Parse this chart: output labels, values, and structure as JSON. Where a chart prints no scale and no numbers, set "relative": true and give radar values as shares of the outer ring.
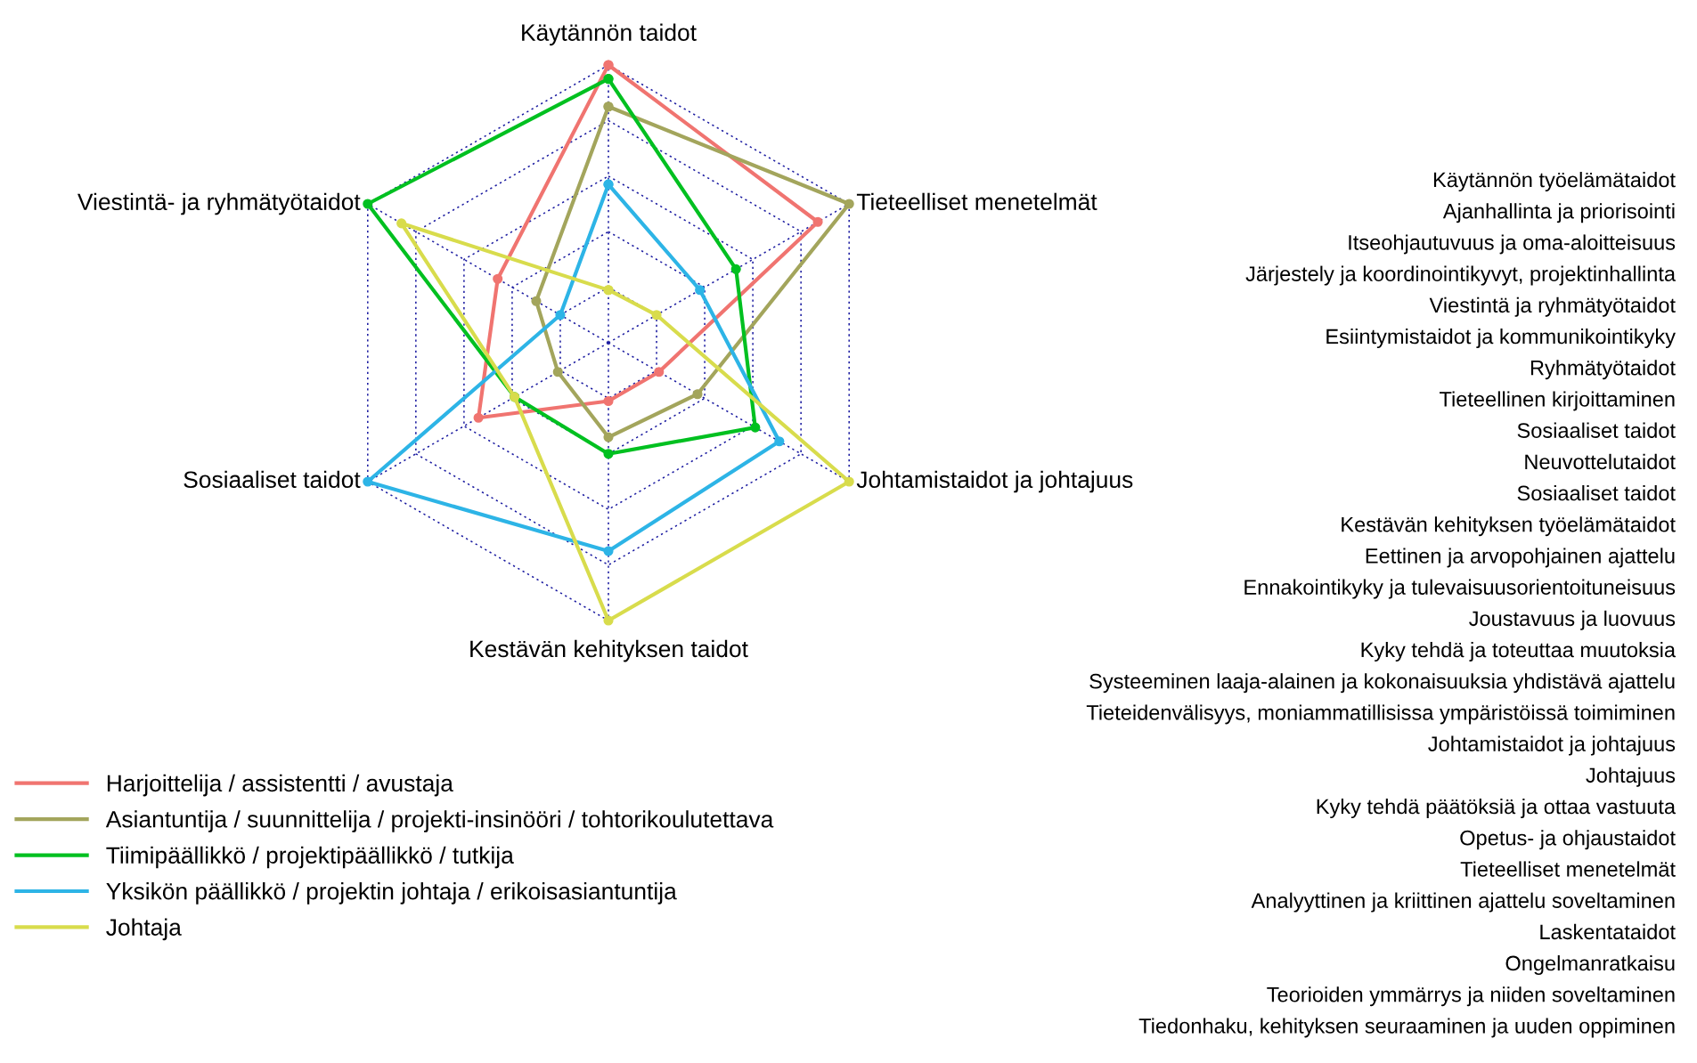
{
  "chart_data": {
    "type": "radar",
    "relative": true,
    "grid": true,
    "legend": "bottom left",
    "marker": "circle",
    "line_style": "solid",
    "categories": [
      "Käytännön taidot",
      "Tieteelliset menetelmät",
      "Johtamistaidot ja johtajuus",
      "Kestävän kehityksen taidot",
      "Sosiaaliset taidot",
      "Viestintä- ja ryhmätyötaidot"
    ],
    "series": [
      {
        "name": "Harjoittelija / assistentti / avustaja",
        "color": "#f07470",
        "values": [
          1.0,
          0.87,
          0.21,
          0.21,
          0.54,
          0.46
        ]
      },
      {
        "name": "Asiantuntija / suunnittelija / projekti-insinööri / tohtorikoulutettava",
        "color": "#a3a55c",
        "values": [
          0.85,
          1.0,
          0.37,
          0.34,
          0.21,
          0.3
        ]
      },
      {
        "name": "Tiimipäällikkö / projektipäällikkö / tutkija",
        "color": "#00c020",
        "values": [
          0.95,
          0.53,
          0.61,
          0.4,
          0.39,
          1.0
        ]
      },
      {
        "name": "Yksikön päällikkö / projektin johtaja / erikoisasiantuntija",
        "color": "#2db4e6",
        "values": [
          0.57,
          0.38,
          0.71,
          0.75,
          1.0,
          0.2
        ]
      },
      {
        "name": "Johtaja",
        "color": "#d8dc4c",
        "values": [
          0.19,
          0.2,
          1.0,
          1.0,
          0.39,
          0.86
        ]
      }
    ],
    "annotations": [
      "Käytännön työelämätaidot",
      "Ajanhallinta ja priorisointi",
      "Itseohjautuvuus ja oma-aloitteisuus",
      "Järjestely ja koordinointikyvyt, projektinhallinta",
      "Viestintä ja ryhmätyötaidot",
      "Esiintymistaidot ja kommunikointikyky",
      "Ryhmätyötaidot",
      "Tieteellinen kirjoittaminen",
      "Sosiaaliset taidot",
      "Neuvottelutaidot",
      "Sosiaaliset taidot",
      "Kestävän kehityksen työelämätaidot",
      "Eettinen ja arvopohjainen ajattelu",
      "Ennakointikyky ja tulevaisuusorientoituneisuus",
      "Joustavuus ja luovuus",
      "Kyky tehdä ja toteuttaa muutoksia",
      "Systeeminen laaja-alainen ja kokonaisuuksia yhdistävä ajattelu",
      "Tieteidenvälisyys, moniammatillisissa ympäristöissä toimiminen",
      "Johtamistaidot ja johtajuus",
      "Johtajuus",
      "Kyky tehdä päätöksiä ja ottaa vastuuta",
      "Opetus- ja ohjaustaidot",
      "Tieteelliset menetelmät",
      "Analyyttinen ja kriittinen ajattelu soveltaminen",
      "Laskentataidot",
      "Ongelmanratkaisu",
      "Teorioiden ymmärrys ja niiden soveltaminen",
      "Tiedonhaku, kehityksen seuraaminen ja uuden oppiminen"
    ]
  }
}
